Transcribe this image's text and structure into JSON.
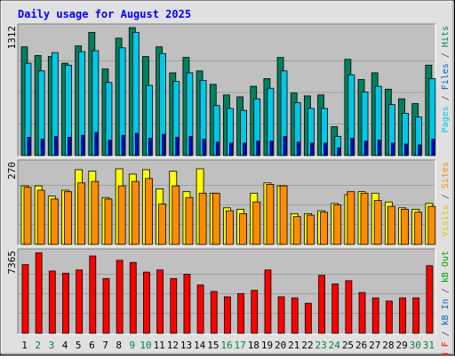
{
  "chart_data": {
    "type": "bar",
    "title": "Daily usage for August 2025",
    "categories": [
      "1",
      "2",
      "3",
      "4",
      "5",
      "6",
      "7",
      "8",
      "9",
      "10",
      "11",
      "12",
      "13",
      "14",
      "15",
      "16",
      "17",
      "18",
      "19",
      "20",
      "21",
      "22",
      "23",
      "24",
      "25",
      "26",
      "27",
      "28",
      "29",
      "30",
      "31"
    ],
    "weekend_days": [
      "2",
      "3",
      "9",
      "10",
      "16",
      "17",
      "23",
      "24",
      "30",
      "31"
    ],
    "panels": [
      {
        "id": "top",
        "max_label": "1312",
        "ymax": 1312,
        "series": [
          {
            "name": "Hits",
            "color": "#008060",
            "values": [
              1130,
              1040,
              1030,
              960,
              1140,
              1280,
              900,
              1220,
              1330,
              1030,
              1130,
              860,
              1020,
              880,
              740,
              630,
              610,
              720,
              800,
              1020,
              650,
              620,
              630,
              300,
              1000,
              790,
              860,
              690,
              590,
              540,
              940
            ]
          },
          {
            "name": "Files",
            "color": "#00c8e8",
            "values": [
              960,
              880,
              1070,
              940,
              1080,
              1090,
              760,
              1120,
              1280,
              730,
              1060,
              770,
              860,
              780,
              520,
              490,
              470,
              590,
              700,
              880,
              550,
              490,
              490,
              200,
              840,
              660,
              720,
              530,
              440,
              400,
              800
            ]
          },
          {
            "name": "Pages",
            "color": "#0000ff",
            "values": [
              190,
              170,
              200,
              190,
              210,
              240,
              160,
              210,
              230,
              180,
              220,
              190,
              200,
              170,
              140,
              130,
              130,
              150,
              150,
              200,
              140,
              130,
              130,
              80,
              180,
              150,
              160,
              130,
              120,
              110,
              170
            ]
          }
        ],
        "side_labels": [
          {
            "text": "Pages",
            "color": "#00c8e8"
          },
          {
            "text": " / ",
            "color": "#4a4a4a"
          },
          {
            "text": "Files",
            "color": "#0064c8"
          },
          {
            "text": " / ",
            "color": "#4a4a4a"
          },
          {
            "text": "Hits",
            "color": "#008060"
          }
        ]
      },
      {
        "id": "middle",
        "max_label": "270",
        "ymax": 270,
        "series": [
          {
            "name": "Visits",
            "color": "#ffff00",
            "values": [
              200,
              200,
              165,
              185,
              255,
              250,
              160,
              258,
              240,
              255,
              190,
              250,
              180,
              258,
              175,
              125,
              120,
              175,
              210,
              200,
              105,
              105,
              115,
              140,
              170,
              180,
              175,
              145,
              125,
              120,
              140
            ]
          },
          {
            "name": "Sites",
            "color": "#ff8c00",
            "values": [
              195,
              185,
              155,
              180,
              210,
              215,
              155,
              200,
              215,
              225,
              138,
              200,
              160,
              175,
              175,
              115,
              105,
              145,
              205,
              200,
              95,
              100,
              110,
              135,
              180,
              175,
              150,
              130,
              120,
              110,
              130
            ]
          }
        ],
        "side_labels": [
          {
            "text": "Visits",
            "color": "#d0d000"
          },
          {
            "text": " / ",
            "color": "#4a4a4a"
          },
          {
            "text": "Sites",
            "color": "#ff8c00"
          }
        ]
      },
      {
        "id": "bottom",
        "max_label": "7365",
        "ymax": 7365,
        "series": [
          {
            "name": "kB F",
            "color": "#ff0000",
            "values": [
              6400,
              7500,
              5800,
              5600,
              5900,
              7200,
              5100,
              6800,
              6600,
              5700,
              5900,
              5100,
              5500,
              4500,
              3900,
              3400,
              3700,
              4000,
              5900,
              3400,
              3300,
              2800,
              5400,
              4600,
              4900,
              3800,
              3300,
              3000,
              3300,
              3300,
              6300
            ]
          }
        ],
        "side_labels": [
          {
            "text": "kB F",
            "color": "#ff0000"
          },
          {
            "text": " / ",
            "color": "#4a4a4a"
          },
          {
            "text": "kB In",
            "color": "#0064c8"
          },
          {
            "text": " / ",
            "color": "#4a4a4a"
          },
          {
            "text": "kB Out",
            "color": "#00a000"
          }
        ]
      }
    ],
    "colors": {
      "title": "#0000ff",
      "background": "#c0c0c0",
      "frame": "#e0e0e0",
      "weekday_label": "#000000",
      "weekend_label": "#008040"
    }
  }
}
